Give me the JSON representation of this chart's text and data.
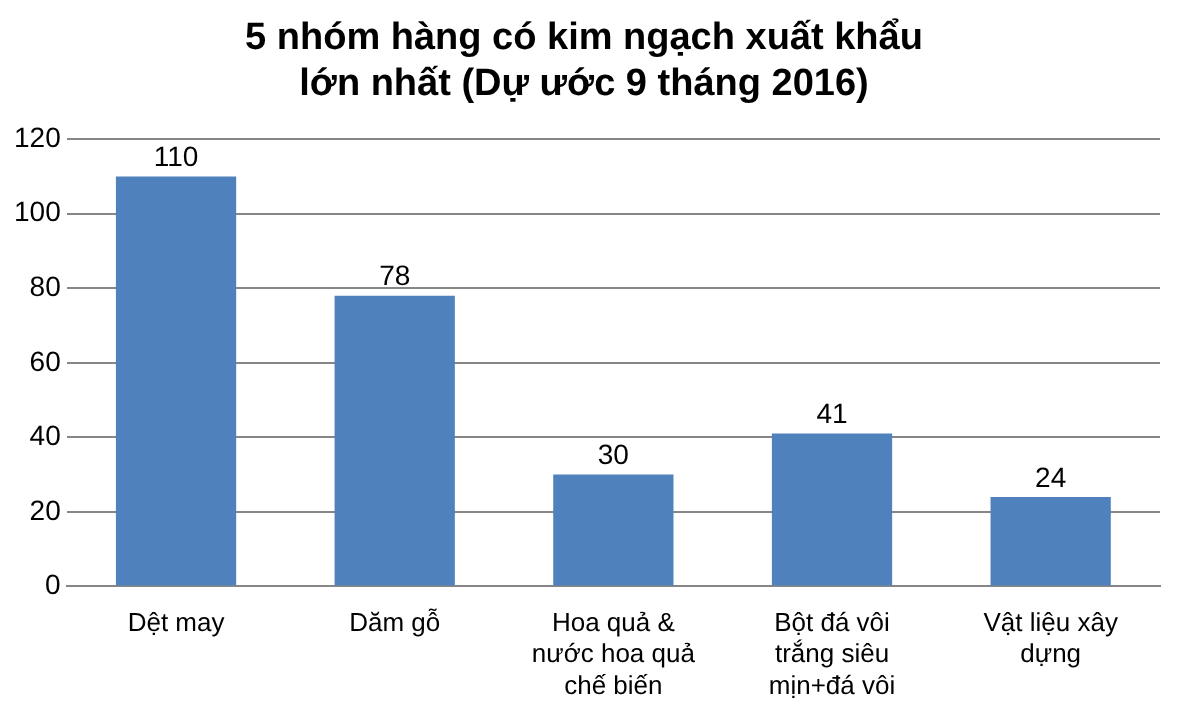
{
  "chart_data": {
    "type": "bar",
    "title": "5 nhóm hàng có kim ngạch xuất khẩu lớn nhất (Dự ước 9 tháng 2016)",
    "categories": [
      "Dệt may",
      "Dăm gỗ",
      "Hoa quả & nước hoa quả chế biến",
      "Bột đá vôi trắng siêu mịn+đá vôi",
      "Vật liệu xây dựng"
    ],
    "values": [
      110,
      78,
      30,
      41,
      24
    ],
    "color": "#4f81bd",
    "ylim": [
      0,
      120
    ],
    "yticks": [
      0,
      20,
      40,
      60,
      80,
      100,
      120
    ],
    "grid": "y",
    "data_labels": true
  }
}
